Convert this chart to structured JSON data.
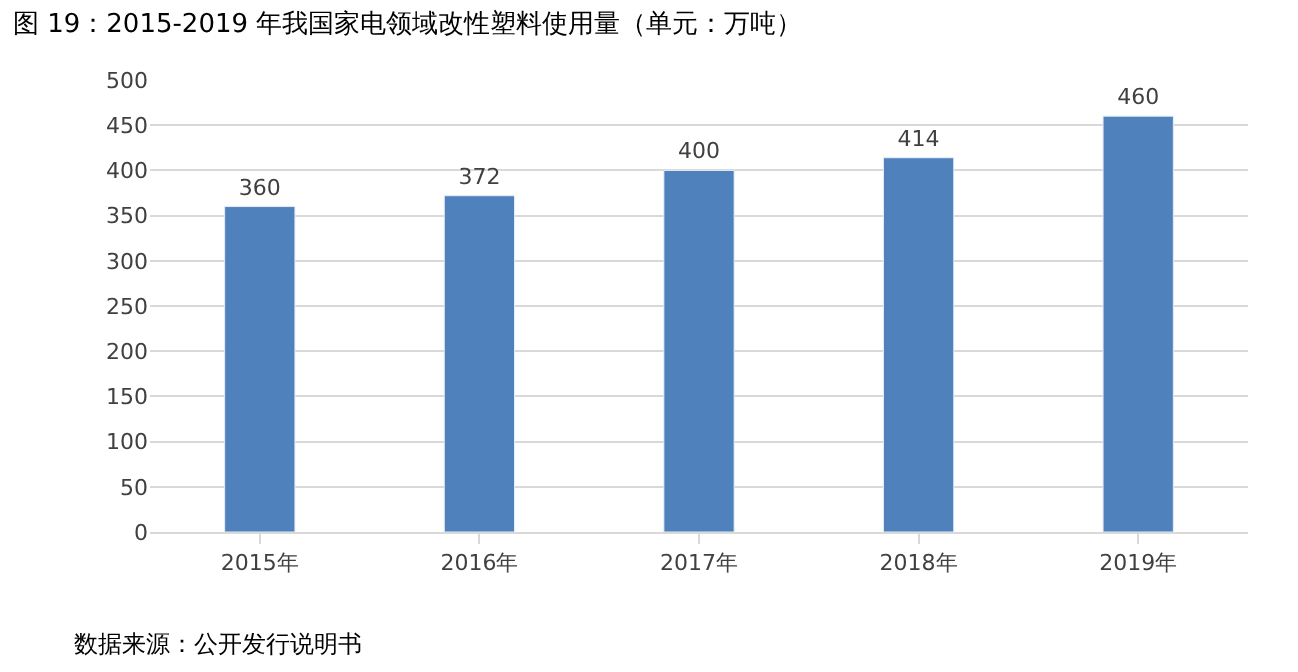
{
  "chart_data": {
    "type": "bar",
    "title": "图 19：2015-2019 年我国家电领域改性塑料使用量（单元：万吨）",
    "categories": [
      "2015年",
      "2016年",
      "2017年",
      "2018年",
      "2019年"
    ],
    "values": [
      360,
      372,
      400,
      414,
      460
    ],
    "color": "#4f81bd",
    "ylim": [
      0,
      500
    ],
    "yticks": [
      0,
      50,
      100,
      150,
      200,
      250,
      300,
      350,
      400,
      450,
      500
    ],
    "grid": "y",
    "data_labels": true,
    "annotations": [
      "数据来源：公开发行说明书"
    ]
  }
}
